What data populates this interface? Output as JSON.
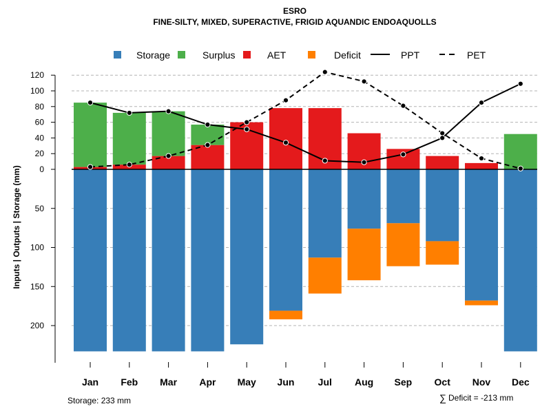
{
  "chart_data": {
    "type": "bar",
    "title": "ESRO",
    "subtitle": "FINE-SILTY, MIXED, SUPERACTIVE, FRIGID AQUANDIC ENDOAQUOLLS",
    "ylabel": "Inputs | Outputs | Storage     (mm)",
    "categories": [
      "Jan",
      "Feb",
      "Mar",
      "Apr",
      "May",
      "Jun",
      "Jul",
      "Aug",
      "Sep",
      "Oct",
      "Nov",
      "Dec"
    ],
    "legend": [
      {
        "name": "Storage",
        "kind": "box",
        "color": "#377eb8"
      },
      {
        "name": "Surplus",
        "kind": "box",
        "color": "#4daf4a"
      },
      {
        "name": "AET",
        "kind": "box",
        "color": "#e41a1c"
      },
      {
        "name": "Deficit",
        "kind": "box",
        "color": "#ff7f00"
      },
      {
        "name": "PPT",
        "kind": "line",
        "color": "#000000"
      },
      {
        "name": "PET",
        "kind": "dash",
        "color": "#000000"
      }
    ],
    "upper_ticks": [
      0,
      20,
      40,
      60,
      80,
      100,
      120
    ],
    "lower_ticks": [
      50,
      100,
      150,
      200
    ],
    "upper_ylim": [
      0,
      120
    ],
    "lower_ylim": [
      0,
      233
    ],
    "series": [
      {
        "name": "AET",
        "values": [
          3,
          6,
          17,
          31,
          60,
          78,
          78,
          46,
          26,
          17,
          8,
          0
        ]
      },
      {
        "name": "Surplus",
        "values": [
          82,
          66,
          57,
          26,
          0,
          0,
          0,
          0,
          0,
          0,
          0,
          45
        ]
      },
      {
        "name": "Storage",
        "values": [
          233,
          233,
          233,
          233,
          224,
          181,
          113,
          76,
          69,
          92,
          168,
          233
        ]
      },
      {
        "name": "Deficit",
        "values": [
          0,
          0,
          0,
          0,
          0,
          11,
          46,
          66,
          55,
          30,
          6,
          0
        ]
      },
      {
        "name": "PPT",
        "values": [
          85,
          72,
          74,
          57,
          51,
          34,
          11,
          9,
          19,
          40,
          85,
          109
        ]
      },
      {
        "name": "PET",
        "values": [
          3,
          6,
          17,
          31,
          60,
          88,
          124,
          112,
          81,
          46,
          14,
          1
        ]
      }
    ],
    "colors": {
      "storage": "#377eb8",
      "surplus": "#4daf4a",
      "aet": "#e41a1c",
      "deficit": "#ff7f00"
    }
  },
  "footer": {
    "storage_note": "Storage: 233 mm",
    "deficit_symbol": "∑",
    "deficit_note": "Deficit = -213 mm"
  }
}
